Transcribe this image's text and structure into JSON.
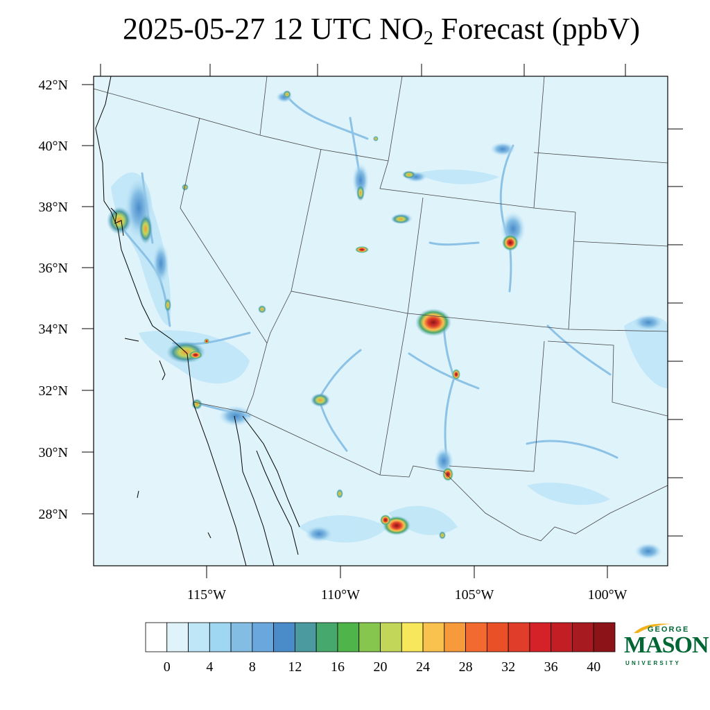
{
  "title": {
    "prefix": "2025-05-27 12 UTC NO",
    "subscript": "2",
    "suffix": " Forecast (ppbV)"
  },
  "map": {
    "lat_labels": [
      "42°N",
      "40°N",
      "38°N",
      "36°N",
      "34°N",
      "32°N",
      "30°N",
      "28°N"
    ],
    "lon_labels": [
      "115°W",
      "110°W",
      "105°W",
      "100°W"
    ],
    "background_color": "#dff3fb",
    "border_color": "#000000"
  },
  "colorbar": {
    "colors": [
      "#ffffff",
      "#e0f3fb",
      "#bfe6f7",
      "#9fd7f3",
      "#84bde4",
      "#6aa7dc",
      "#4a8cca",
      "#4a9aa0",
      "#46a86c",
      "#4fb44a",
      "#86c54e",
      "#c2d65a",
      "#f7e75c",
      "#f9c24f",
      "#f79a3c",
      "#f26a30",
      "#ea5028",
      "#e03d2a",
      "#d42228",
      "#c21e24",
      "#a61a20",
      "#8c1418"
    ],
    "labels": [
      "0",
      "4",
      "8",
      "12",
      "16",
      "20",
      "24",
      "28",
      "32",
      "36",
      "40"
    ]
  },
  "logo": {
    "line1": "GEORGE",
    "line2": "MASON",
    "line3": "UNIVERSITY",
    "color": "#006633",
    "accent": "#f2b21d"
  }
}
